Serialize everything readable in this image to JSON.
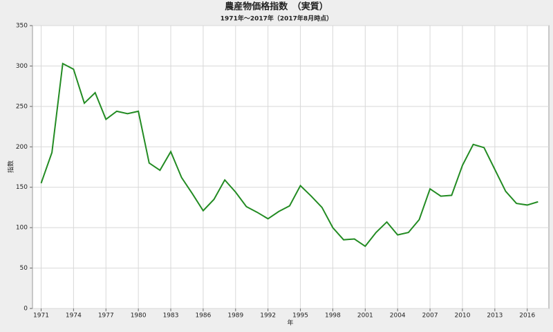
{
  "chart_data": {
    "type": "line",
    "title": "農産物価格指数　（実質）",
    "subtitle": "1971年～2017年（2017年8月時点）",
    "x_label": "年",
    "y_label": "指数",
    "x": [
      1971,
      1972,
      1973,
      1974,
      1975,
      1976,
      1977,
      1978,
      1979,
      1980,
      1981,
      1982,
      1983,
      1984,
      1985,
      1986,
      1987,
      1988,
      1989,
      1990,
      1991,
      1992,
      1993,
      1994,
      1995,
      1996,
      1997,
      1998,
      1999,
      2000,
      2001,
      2002,
      2003,
      2004,
      2005,
      2006,
      2007,
      2008,
      2009,
      2010,
      2011,
      2012,
      2013,
      2014,
      2015,
      2016,
      2017
    ],
    "values": [
      155,
      193,
      303,
      296,
      254,
      267,
      234,
      244,
      241,
      244,
      180,
      171,
      194,
      162,
      142,
      121,
      135,
      159,
      144,
      126,
      119,
      111,
      120,
      127,
      152,
      139,
      125,
      100,
      85,
      86,
      77,
      94,
      107,
      91,
      94,
      110,
      148,
      139,
      140,
      177,
      203,
      199,
      172,
      145,
      130,
      128,
      132
    ],
    "color": "#228b22",
    "xlim": [
      1970.2,
      2018
    ],
    "xticks": [
      1971,
      1974,
      1977,
      1980,
      1983,
      1986,
      1989,
      1992,
      1995,
      1998,
      2001,
      2004,
      2007,
      2010,
      2013,
      2016
    ],
    "ylim": [
      0,
      350
    ],
    "yticks": [
      0,
      50,
      100,
      150,
      200,
      250,
      300,
      350
    ],
    "grid": true
  }
}
